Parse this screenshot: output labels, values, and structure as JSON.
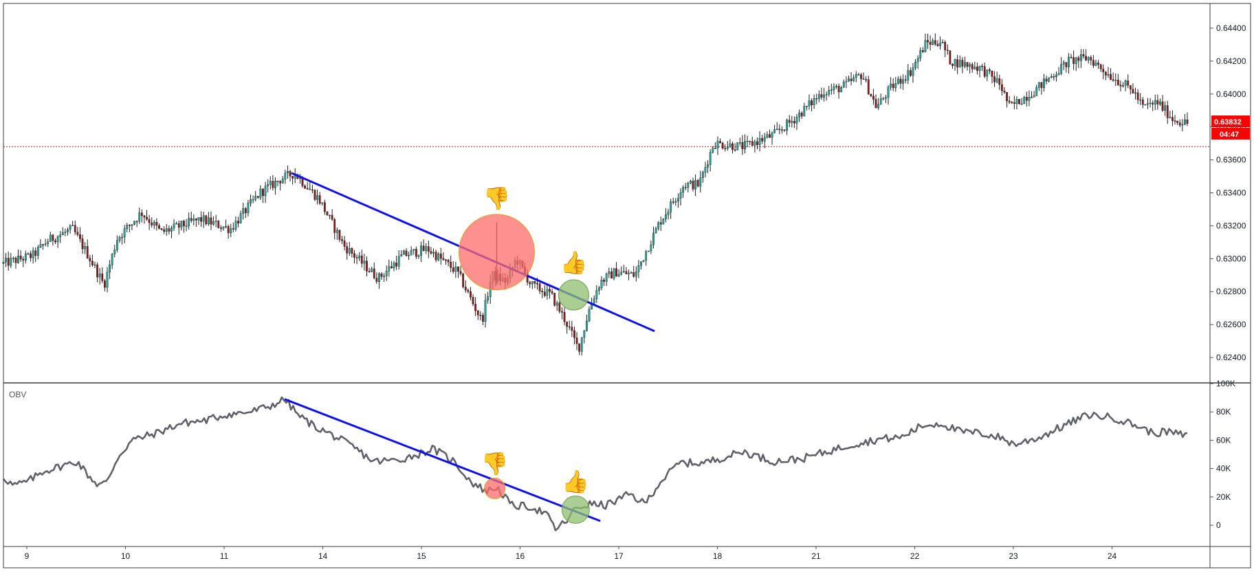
{
  "chart_data": {
    "type": "line",
    "description_type": "candlestick price chart with OBV indicator pane",
    "x_tick_labels": [
      "9",
      "10",
      "11",
      "14",
      "15",
      "16",
      "17",
      "18",
      "21",
      "22",
      "23",
      "24"
    ],
    "price_pane": {
      "y_ticks": [
        0.624,
        0.626,
        0.628,
        0.63,
        0.632,
        0.634,
        0.636,
        0.638,
        0.64,
        0.642,
        0.644
      ],
      "y_tick_labels": [
        "0.62400",
        "0.62600",
        "0.62800",
        "0.63000",
        "0.63200",
        "0.63400",
        "0.63600",
        "0.63800",
        "0.64000",
        "0.64200",
        "0.64400"
      ],
      "ylim": [
        0.6225,
        0.6455
      ],
      "last_price": 0.63832,
      "last_price_label": "0.63832",
      "countdown_label": "04:47",
      "reference_line": 0.6368,
      "key_points": [
        {
          "x": 0.0,
          "y": 0.6297
        },
        {
          "x": 0.3,
          "y": 0.6302
        },
        {
          "x": 0.45,
          "y": 0.6311
        },
        {
          "x": 0.7,
          "y": 0.6318
        },
        {
          "x": 0.85,
          "y": 0.6303
        },
        {
          "x": 0.95,
          "y": 0.6292
        },
        {
          "x": 1.02,
          "y": 0.6284
        },
        {
          "x": 1.15,
          "y": 0.6312
        },
        {
          "x": 1.4,
          "y": 0.6328
        },
        {
          "x": 1.6,
          "y": 0.6316
        },
        {
          "x": 2.0,
          "y": 0.6324
        },
        {
          "x": 2.3,
          "y": 0.6318
        },
        {
          "x": 2.6,
          "y": 0.634
        },
        {
          "x": 2.8,
          "y": 0.6348
        },
        {
          "x": 2.95,
          "y": 0.6352
        },
        {
          "x": 3.2,
          "y": 0.6336
        },
        {
          "x": 3.45,
          "y": 0.6308
        },
        {
          "x": 3.8,
          "y": 0.6288
        },
        {
          "x": 4.05,
          "y": 0.6302
        },
        {
          "x": 4.3,
          "y": 0.6306
        },
        {
          "x": 4.6,
          "y": 0.6292
        },
        {
          "x": 4.85,
          "y": 0.6262
        },
        {
          "x": 4.95,
          "y": 0.629
        },
        {
          "x": 5.1,
          "y": 0.6286
        },
        {
          "x": 5.2,
          "y": 0.63
        },
        {
          "x": 5.35,
          "y": 0.6284
        },
        {
          "x": 5.55,
          "y": 0.6278
        },
        {
          "x": 5.7,
          "y": 0.6262
        },
        {
          "x": 5.83,
          "y": 0.6245
        },
        {
          "x": 5.95,
          "y": 0.6272
        },
        {
          "x": 6.05,
          "y": 0.6286
        },
        {
          "x": 6.2,
          "y": 0.6292
        },
        {
          "x": 6.4,
          "y": 0.629
        },
        {
          "x": 6.65,
          "y": 0.6322
        },
        {
          "x": 6.9,
          "y": 0.6345
        },
        {
          "x": 7.05,
          "y": 0.6345
        },
        {
          "x": 7.2,
          "y": 0.637
        },
        {
          "x": 7.5,
          "y": 0.6368
        },
        {
          "x": 7.8,
          "y": 0.6375
        },
        {
          "x": 8.0,
          "y": 0.6384
        },
        {
          "x": 8.3,
          "y": 0.6401
        },
        {
          "x": 8.5,
          "y": 0.6404
        },
        {
          "x": 8.7,
          "y": 0.6412
        },
        {
          "x": 8.85,
          "y": 0.6392
        },
        {
          "x": 9.0,
          "y": 0.6404
        },
        {
          "x": 9.2,
          "y": 0.6414
        },
        {
          "x": 9.35,
          "y": 0.6431
        },
        {
          "x": 9.5,
          "y": 0.6432
        },
        {
          "x": 9.6,
          "y": 0.642
        },
        {
          "x": 9.9,
          "y": 0.6416
        },
        {
          "x": 10.1,
          "y": 0.6406
        },
        {
          "x": 10.2,
          "y": 0.6392
        },
        {
          "x": 10.45,
          "y": 0.6402
        },
        {
          "x": 10.8,
          "y": 0.642
        },
        {
          "x": 11.0,
          "y": 0.6422
        },
        {
          "x": 11.2,
          "y": 0.6412
        },
        {
          "x": 11.45,
          "y": 0.6402
        },
        {
          "x": 11.55,
          "y": 0.6392
        },
        {
          "x": 11.7,
          "y": 0.6395
        },
        {
          "x": 11.85,
          "y": 0.6385
        },
        {
          "x": 12.0,
          "y": 0.6382
        }
      ],
      "trendline": {
        "x1": 2.92,
        "y1": 0.6352,
        "x2": 6.6,
        "y2": 0.6256,
        "color": "#1010e8"
      },
      "markers": [
        {
          "type": "thumbs-down",
          "circle_color": "#ff6b6b",
          "circle_x": 5.0,
          "circle_y": 0.6304,
          "glyph": "👎"
        },
        {
          "type": "thumbs-up",
          "circle_color": "#8fbf6f",
          "circle_x": 5.78,
          "circle_y": 0.6278,
          "glyph": "👍"
        }
      ]
    },
    "obv_pane": {
      "title": "OBV",
      "y_ticks": [
        0,
        20000,
        40000,
        60000,
        80000,
        100000
      ],
      "y_tick_labels": [
        "0",
        "20K",
        "40K",
        "60K",
        "80K",
        "100K"
      ],
      "ylim": [
        -15000,
        100000
      ],
      "key_points": [
        {
          "x": 0.0,
          "y": 34000
        },
        {
          "x": 0.1,
          "y": 28000
        },
        {
          "x": 0.25,
          "y": 31000
        },
        {
          "x": 0.4,
          "y": 38000
        },
        {
          "x": 0.6,
          "y": 42000
        },
        {
          "x": 0.75,
          "y": 45000
        },
        {
          "x": 0.85,
          "y": 36000
        },
        {
          "x": 0.95,
          "y": 29000
        },
        {
          "x": 1.05,
          "y": 30000
        },
        {
          "x": 1.15,
          "y": 47000
        },
        {
          "x": 1.3,
          "y": 60000
        },
        {
          "x": 1.55,
          "y": 65000
        },
        {
          "x": 1.8,
          "y": 72000
        },
        {
          "x": 2.05,
          "y": 74000
        },
        {
          "x": 2.25,
          "y": 78000
        },
        {
          "x": 2.5,
          "y": 80000
        },
        {
          "x": 2.7,
          "y": 84000
        },
        {
          "x": 2.85,
          "y": 89000
        },
        {
          "x": 3.0,
          "y": 77000
        },
        {
          "x": 3.15,
          "y": 70000
        },
        {
          "x": 3.35,
          "y": 63000
        },
        {
          "x": 3.55,
          "y": 55000
        },
        {
          "x": 3.75,
          "y": 45000
        },
        {
          "x": 4.0,
          "y": 46000
        },
        {
          "x": 4.2,
          "y": 50000
        },
        {
          "x": 4.35,
          "y": 54000
        },
        {
          "x": 4.55,
          "y": 46000
        },
        {
          "x": 4.75,
          "y": 30000
        },
        {
          "x": 4.9,
          "y": 24000
        },
        {
          "x": 5.0,
          "y": 27000
        },
        {
          "x": 5.15,
          "y": 14000
        },
        {
          "x": 5.35,
          "y": 13000
        },
        {
          "x": 5.5,
          "y": 8000
        },
        {
          "x": 5.6,
          "y": -3000
        },
        {
          "x": 5.72,
          "y": 4000
        },
        {
          "x": 5.8,
          "y": 12000
        },
        {
          "x": 5.95,
          "y": 15000
        },
        {
          "x": 6.1,
          "y": 14000
        },
        {
          "x": 6.2,
          "y": 17000
        },
        {
          "x": 6.35,
          "y": 22000
        },
        {
          "x": 6.5,
          "y": 15000
        },
        {
          "x": 6.65,
          "y": 30000
        },
        {
          "x": 6.85,
          "y": 44000
        },
        {
          "x": 7.1,
          "y": 44000
        },
        {
          "x": 7.3,
          "y": 48000
        },
        {
          "x": 7.5,
          "y": 52000
        },
        {
          "x": 7.8,
          "y": 45000
        },
        {
          "x": 8.1,
          "y": 47000
        },
        {
          "x": 8.3,
          "y": 51000
        },
        {
          "x": 8.6,
          "y": 57000
        },
        {
          "x": 8.9,
          "y": 61000
        },
        {
          "x": 9.1,
          "y": 62000
        },
        {
          "x": 9.3,
          "y": 70000
        },
        {
          "x": 9.5,
          "y": 72000
        },
        {
          "x": 9.7,
          "y": 66000
        },
        {
          "x": 9.9,
          "y": 65000
        },
        {
          "x": 10.1,
          "y": 62000
        },
        {
          "x": 10.25,
          "y": 57000
        },
        {
          "x": 10.5,
          "y": 62000
        },
        {
          "x": 10.8,
          "y": 72000
        },
        {
          "x": 11.0,
          "y": 78000
        },
        {
          "x": 11.25,
          "y": 76000
        },
        {
          "x": 11.5,
          "y": 70000
        },
        {
          "x": 11.65,
          "y": 65000
        },
        {
          "x": 11.8,
          "y": 66000
        },
        {
          "x": 12.0,
          "y": 63000
        }
      ],
      "trendline": {
        "x1": 2.85,
        "y1": 89000,
        "x2": 6.05,
        "y2": 3000,
        "color": "#1010e8"
      },
      "markers": [
        {
          "type": "thumbs-down",
          "circle_color": "#ff6b6b",
          "circle_x": 4.98,
          "circle_y": 26000,
          "glyph": "👎"
        },
        {
          "type": "thumbs-up",
          "circle_color": "#8fbf6f",
          "circle_x": 5.8,
          "circle_y": 11000,
          "glyph": "👍"
        }
      ]
    },
    "colors": {
      "up_candle": "#26a69a",
      "down_candle": "#8b1a1a",
      "wick": "#1a1a1a",
      "obv_line": "#606068",
      "reference_line": "#cc2222",
      "price_badge": "#ff0000",
      "axis_border": "#3a3a3a"
    }
  }
}
